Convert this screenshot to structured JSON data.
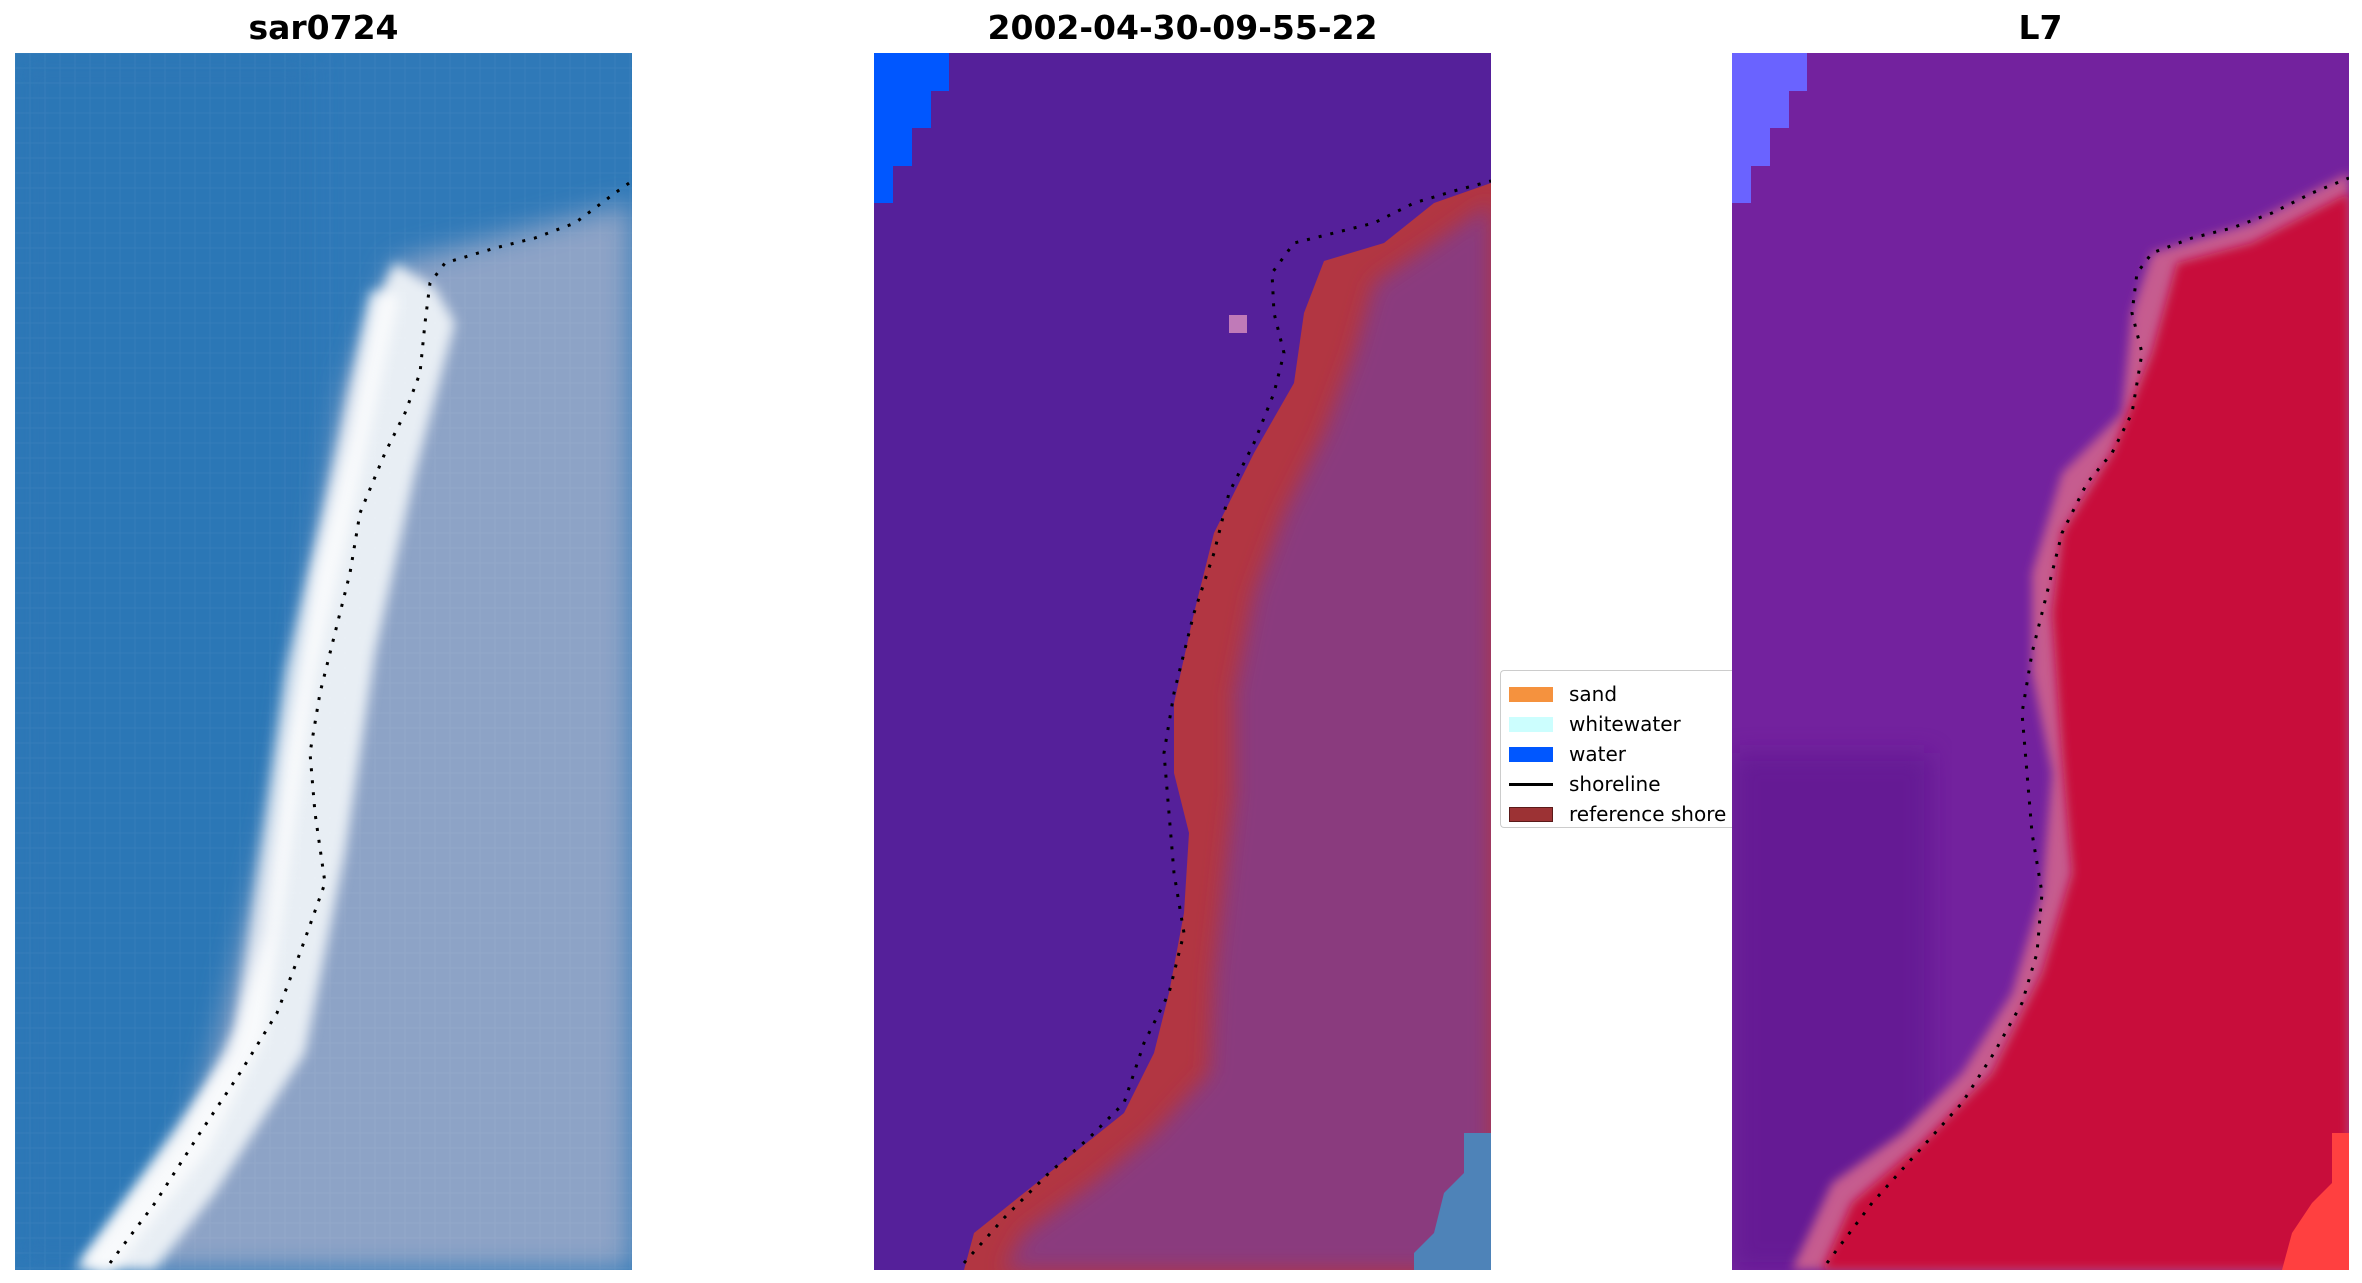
{
  "panels": [
    {
      "title": "sar0724",
      "kind": "rgb-image"
    },
    {
      "title": "2002-04-30-09-55-22",
      "kind": "classified-image"
    },
    {
      "title": "L7",
      "kind": "index-image"
    }
  ],
  "legend": {
    "items": [
      {
        "label": "sand",
        "type": "patch",
        "color": "#f5923e"
      },
      {
        "label": "whitewater",
        "type": "patch",
        "color": "#ccfefe"
      },
      {
        "label": "water",
        "type": "patch",
        "color": "#0057ff"
      },
      {
        "label": "shoreline",
        "type": "line",
        "color": "#000000"
      },
      {
        "label": "reference shore",
        "type": "patch",
        "color": "#9c3234"
      }
    ]
  },
  "colors": {
    "sea_rgb": "#2f79b8",
    "surf_rgb": "#e8eef4",
    "land_rgb": "#8da3c6",
    "classified_water": "#55209a",
    "classified_land": "#8a3b7e",
    "reference_shore": "#b23642",
    "index_sea": "#73229e",
    "index_land": "#c80a3a"
  }
}
